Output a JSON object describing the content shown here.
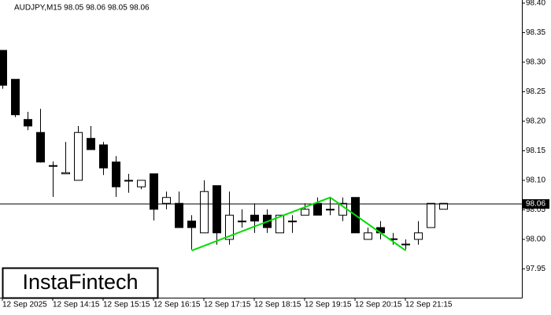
{
  "chart_data": {
    "type": "candlestick",
    "title": "AUDJPY,M15  98.05 98.06 98.05 98.06",
    "watermark": "InstaFintech",
    "categories": [
      "12 Sep 2025",
      null,
      null,
      null,
      "12 Sep 14:15",
      null,
      null,
      null,
      "12 Sep 15:15",
      null,
      null,
      null,
      "12 Sep 16:15",
      null,
      null,
      null,
      "12 Sep 17:15",
      null,
      null,
      null,
      "12 Sep 18:15",
      null,
      null,
      null,
      "12 Sep 19:15",
      null,
      null,
      null,
      "12 Sep 20:15",
      null,
      null,
      null,
      "12 Sep 21:15",
      null,
      null,
      null
    ],
    "open": [
      98.32,
      98.271,
      98.203,
      98.181,
      98.125,
      98.111,
      98.1,
      98.171,
      98.16,
      98.131,
      98.1,
      98.089,
      98.111,
      98.061,
      98.061,
      98.031,
      98.011,
      98.091,
      98.0,
      98.03,
      98.041,
      98.041,
      98.011,
      98.031,
      98.041,
      98.061,
      98.05,
      98.041,
      98.071,
      98.0,
      98.02,
      98.0,
      97.991,
      98.0,
      98.02,
      98.051
    ],
    "high": [
      98.32,
      98.271,
      98.216,
      98.221,
      98.132,
      98.165,
      98.192,
      98.192,
      98.165,
      98.141,
      98.111,
      98.1,
      98.111,
      98.081,
      98.081,
      98.041,
      98.1,
      98.091,
      98.081,
      98.051,
      98.061,
      98.051,
      98.041,
      98.041,
      98.061,
      98.071,
      98.071,
      98.071,
      98.071,
      98.02,
      98.031,
      98.011,
      98.0,
      98.031,
      98.061,
      98.061
    ],
    "low": [
      98.255,
      98.207,
      98.185,
      98.13,
      98.072,
      98.111,
      98.1,
      98.152,
      98.109,
      98.072,
      98.079,
      98.085,
      98.032,
      98.051,
      98.02,
      97.983,
      98.011,
      97.991,
      97.991,
      98.02,
      98.011,
      98.011,
      98.011,
      98.011,
      98.041,
      98.041,
      98.041,
      98.031,
      98.011,
      98.0,
      98.0,
      97.991,
      97.983,
      97.991,
      98.02,
      98.051
    ],
    "close": [
      98.261,
      98.211,
      98.192,
      98.131,
      98.124,
      98.113,
      98.181,
      98.152,
      98.121,
      98.089,
      98.099,
      98.1,
      98.051,
      98.071,
      98.02,
      98.02,
      98.081,
      98.011,
      98.041,
      98.031,
      98.031,
      98.02,
      98.041,
      98.031,
      98.051,
      98.041,
      98.051,
      98.061,
      98.011,
      98.011,
      98.011,
      98.001,
      97.992,
      98.011,
      98.061,
      98.061
    ],
    "bull_color": "#ffffff",
    "bear_color": "#000000",
    "pattern": {
      "color": "#00dd00",
      "x": [
        15,
        26,
        32
      ],
      "values": [
        97.981,
        98.071,
        97.981
      ]
    },
    "last_price": 98.06,
    "ylim": [
      97.9013,
      98.4053
    ],
    "yticks": [
      {
        "value": 98.4,
        "label": "98.40"
      },
      98.35,
      {
        "value": 98.3,
        "label": "98.30"
      },
      98.25,
      {
        "value": 98.2,
        "label": "98.20"
      },
      98.15,
      {
        "value": 98.1,
        "label": "98.10"
      },
      98.05,
      {
        "value": 98.0,
        "label": "98.00"
      },
      97.95
    ],
    "grid": false
  }
}
